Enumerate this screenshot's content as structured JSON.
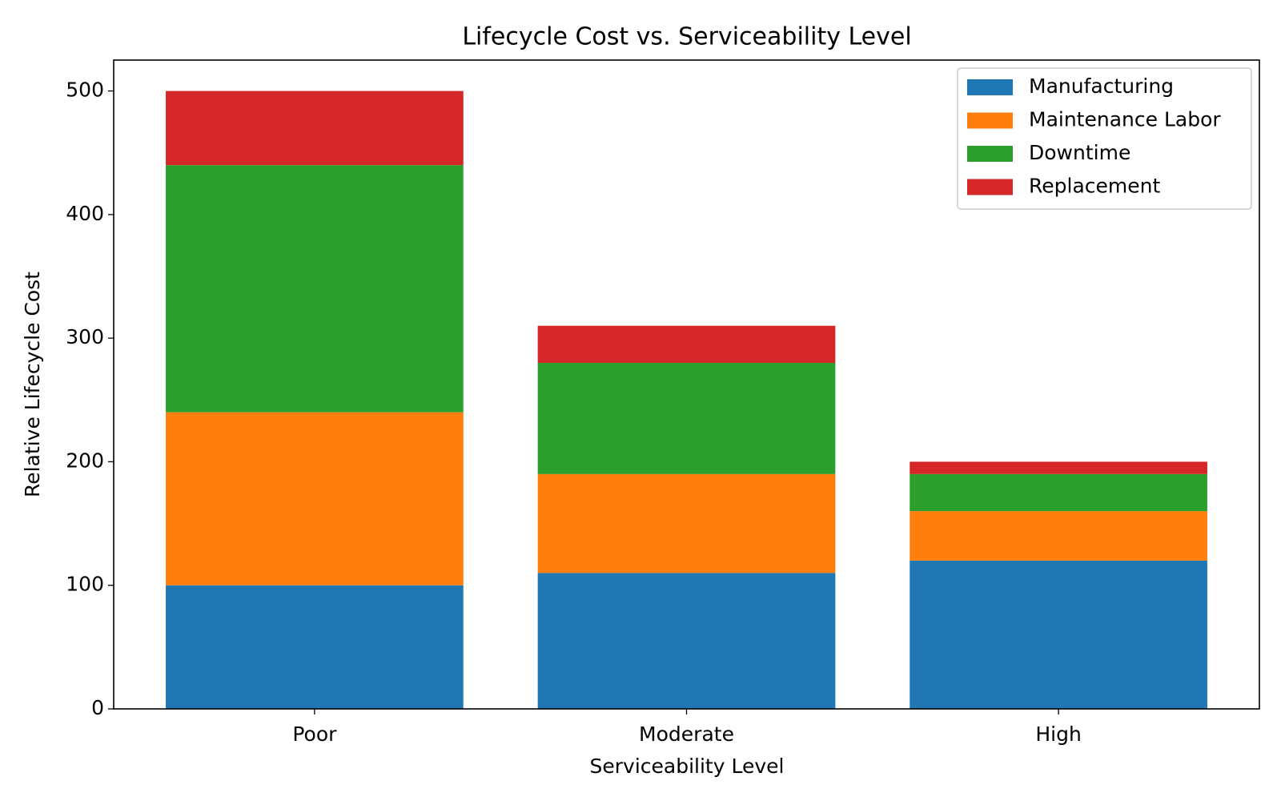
{
  "chart_data": {
    "type": "stacked_bar",
    "title": "Lifecycle Cost vs. Serviceability Level",
    "x_label": "Serviceability Level",
    "y_label": "Relative Lifecycle Cost",
    "categories": [
      "Poor",
      "Moderate",
      "High"
    ],
    "series": [
      {
        "name": "Manufacturing",
        "color": "#1f77b4",
        "values": [
          100,
          110,
          120
        ]
      },
      {
        "name": "Maintenance Labor",
        "color": "#ff7f0e",
        "values": [
          140,
          80,
          40
        ]
      },
      {
        "name": "Downtime",
        "color": "#2ca02c",
        "values": [
          200,
          90,
          30
        ]
      },
      {
        "name": "Replacement",
        "color": "#d62728",
        "values": [
          60,
          30,
          10
        ]
      }
    ],
    "ylim": [
      0,
      525
    ],
    "yticks": [
      0,
      100,
      200,
      300,
      400,
      500
    ],
    "grid": false,
    "legend": "upper right"
  }
}
